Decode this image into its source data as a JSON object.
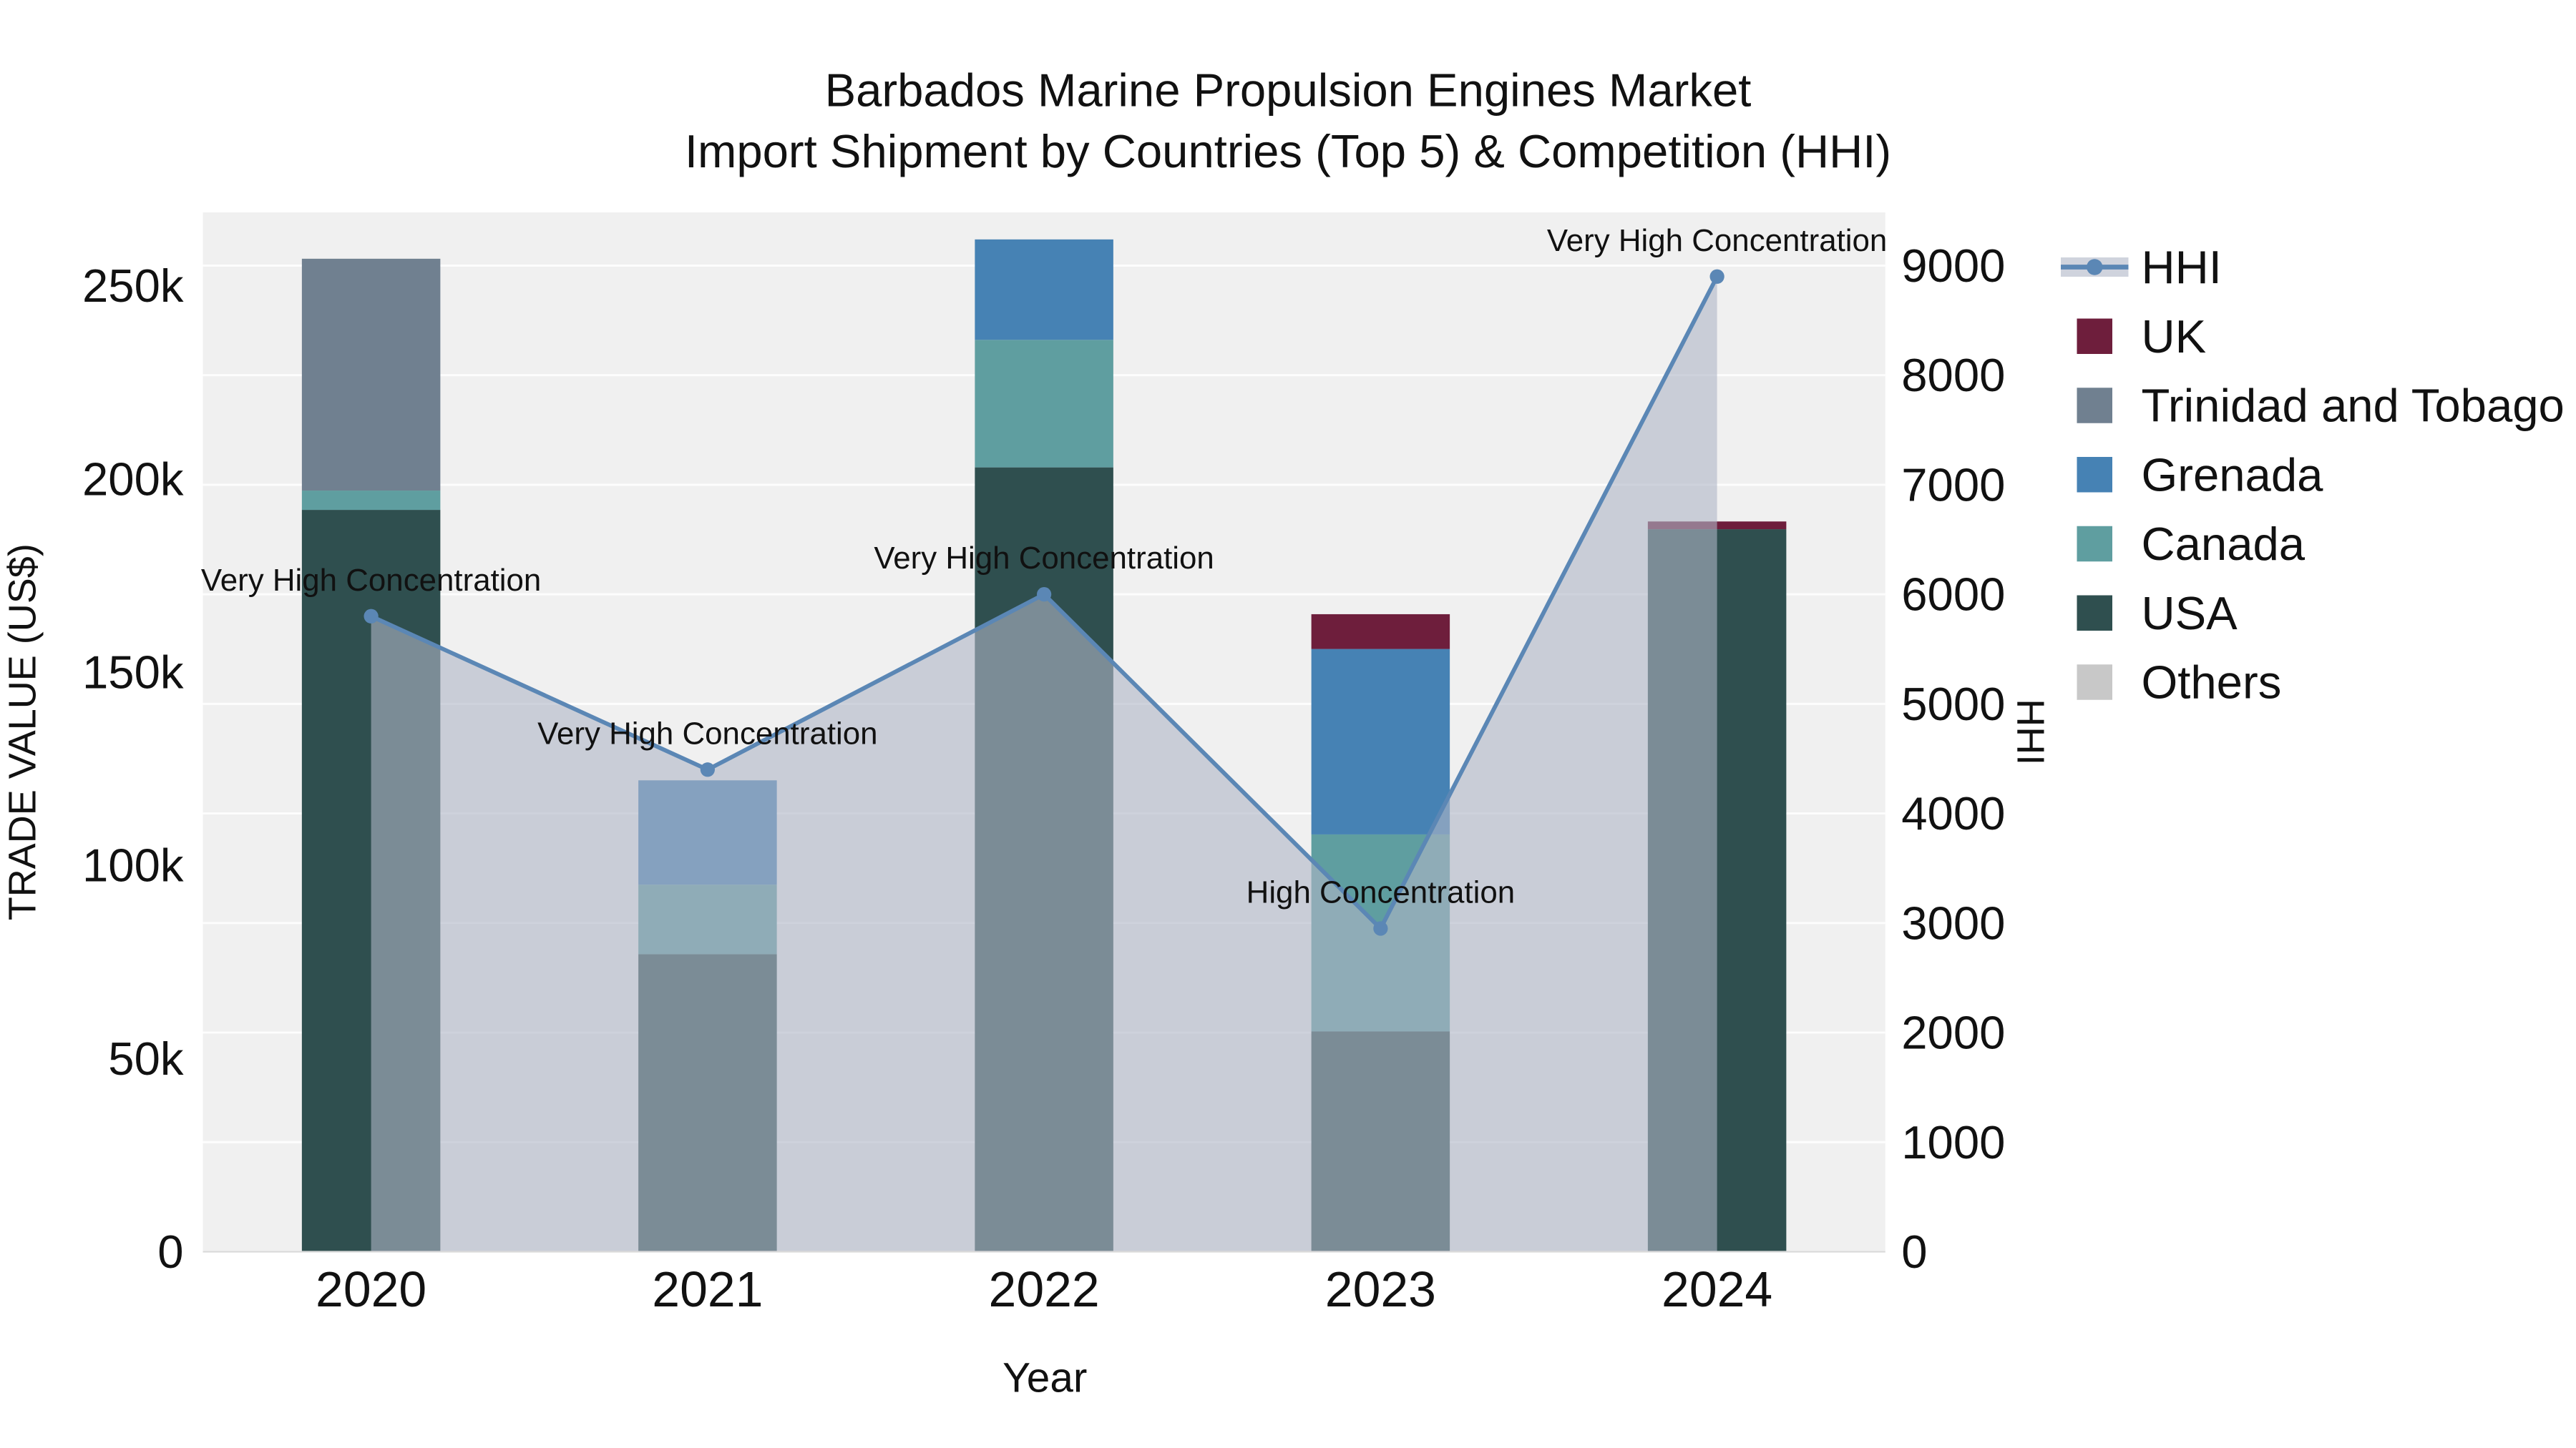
{
  "chart_data": {
    "type": "bar",
    "variant": "stacked-bars-with-line-overlay",
    "title": "Barbados Marine Propulsion Engines Market",
    "subtitle": "Import Shipment by Countries (Top 5) & Competition (HHI)",
    "xlabel": "Year",
    "ylabel_left": "TRADE VALUE (US$)",
    "ylabel_right": "HHI",
    "plot_background": "#f0f0f0",
    "grid_color": "#ffffff",
    "axis_line_color": "#d9d9d9",
    "categories": [
      "2020",
      "2021",
      "2022",
      "2023",
      "2024"
    ],
    "bar_series": [
      {
        "name": "USA",
        "color": "#2f4f4f",
        "values": [
          192000,
          77000,
          203000,
          57000,
          187000
        ]
      },
      {
        "name": "Canada",
        "color": "#5f9ea0",
        "values": [
          5000,
          18000,
          33000,
          51000,
          0
        ]
      },
      {
        "name": "Grenada",
        "color": "#4682b4",
        "values": [
          0,
          27000,
          26000,
          48000,
          0
        ]
      },
      {
        "name": "Trinidad and Tobago",
        "color": "#708090",
        "values": [
          60000,
          0,
          0,
          0,
          0
        ]
      },
      {
        "name": "UK",
        "color": "#6e1e3c",
        "values": [
          0,
          0,
          0,
          9000,
          2000
        ]
      },
      {
        "name": "Others",
        "color": "#c8c8c8",
        "values": [
          0,
          0,
          0,
          0,
          0
        ]
      }
    ],
    "line_series": {
      "name": "HHI",
      "axis": "right",
      "color": "#5b87b5",
      "area_fill": "rgba(175,182,198,0.6)",
      "values": [
        5800,
        4400,
        6000,
        2950,
        8900
      ]
    },
    "point_annotations": [
      "Very High Concentration",
      "Very High Concentration",
      "Very High Concentration",
      "High Concentration",
      "Very High Concentration"
    ],
    "left_axis": {
      "min": 0,
      "max": 269000,
      "ticks": [
        0,
        50000,
        100000,
        150000,
        200000,
        250000
      ],
      "tick_labels": [
        "0",
        "50k",
        "100k",
        "150k",
        "200k",
        "250k"
      ]
    },
    "right_axis": {
      "min": 0,
      "max": 9486,
      "ticks": [
        0,
        1000,
        2000,
        3000,
        4000,
        5000,
        6000,
        7000,
        8000,
        9000
      ],
      "tick_labels": [
        "0",
        "1000",
        "2000",
        "3000",
        "4000",
        "5000",
        "6000",
        "7000",
        "8000",
        "9000"
      ]
    },
    "legend": {
      "items": [
        {
          "label": "HHI",
          "type": "line",
          "color": "#5b87b5"
        },
        {
          "label": "UK",
          "type": "square",
          "color": "#6e1e3c"
        },
        {
          "label": "Trinidad and Tobago",
          "type": "square",
          "color": "#708090"
        },
        {
          "label": "Grenada",
          "type": "square",
          "color": "#4682b4"
        },
        {
          "label": "Canada",
          "type": "square",
          "color": "#5f9ea0"
        },
        {
          "label": "USA",
          "type": "square",
          "color": "#2f4f4f"
        },
        {
          "label": "Others",
          "type": "square",
          "color": "#c8c8c8"
        }
      ]
    }
  }
}
